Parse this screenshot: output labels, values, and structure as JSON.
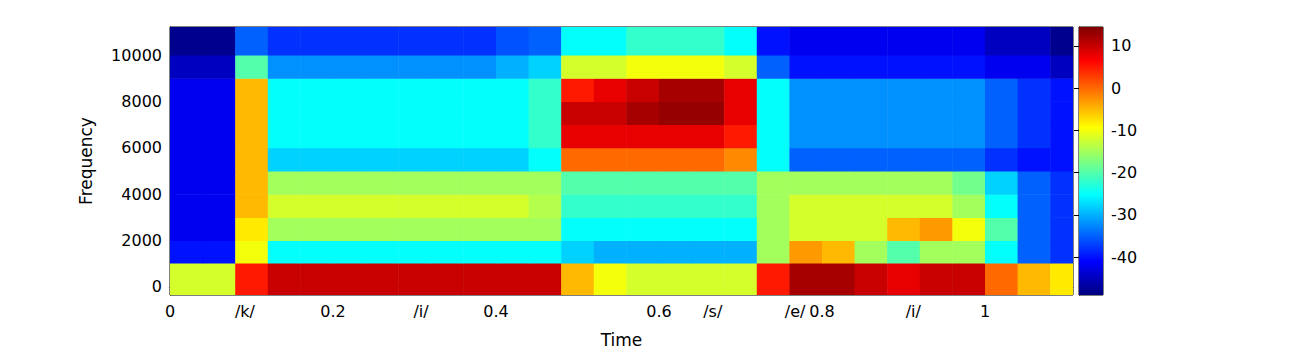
{
  "chart_data": {
    "type": "heatmap",
    "xlabel": "Time",
    "ylabel": "Frequency",
    "xlim": [
      0,
      1.108
    ],
    "xticks": [
      0,
      {
        "value": 0.092,
        "label": "/k/"
      },
      0.2,
      {
        "value": 0.308,
        "label": "/i/"
      },
      0.4,
      0.6,
      {
        "value": 0.666,
        "label": "/s/"
      },
      {
        "value": 0.767,
        "label": "/e/"
      },
      0.8,
      {
        "value": 0.912,
        "label": "/i/"
      },
      1
    ],
    "ylim": [
      -345,
      11207
    ],
    "yticks": [
      0,
      2000,
      4000,
      6000,
      8000,
      10000
    ],
    "time_edges": [
      0,
      0.04,
      0.08,
      0.12,
      0.16,
      0.2,
      0.24,
      0.28,
      0.32,
      0.36,
      0.4,
      0.44,
      0.48,
      0.52,
      0.56,
      0.6,
      0.64,
      0.68,
      0.72,
      0.76,
      0.8,
      0.84,
      0.88,
      0.92,
      0.96,
      1.0,
      1.04,
      1.08,
      1.108
    ],
    "frequency_edges": [
      -345,
      1034,
      2000,
      3000,
      4000,
      5000,
      6000,
      7000,
      8000,
      9000,
      10000,
      11207
    ],
    "cells": [
      [
        -12,
        -12,
        5,
        10,
        10,
        10,
        10,
        10,
        10,
        10,
        10,
        10,
        -5,
        -10,
        -12,
        -12,
        -12,
        -12,
        5,
        12,
        12,
        10,
        8,
        10,
        10,
        0,
        -5,
        -8
      ],
      [
        -40,
        -40,
        -10,
        -25,
        -25,
        -25,
        -25,
        -25,
        -25,
        -25,
        -25,
        -25,
        -28,
        -30,
        -30,
        -30,
        -30,
        -30,
        -15,
        -3,
        -5,
        -15,
        -20,
        -15,
        -15,
        -25,
        -35,
        -38
      ],
      [
        -42,
        -42,
        -8,
        -15,
        -15,
        -15,
        -15,
        -15,
        -15,
        -15,
        -15,
        -15,
        -25,
        -25,
        -25,
        -25,
        -25,
        -25,
        -15,
        -12,
        -12,
        -12,
        -5,
        -3,
        -10,
        -20,
        -35,
        -38
      ],
      [
        -42,
        -42,
        -5,
        -12,
        -12,
        -12,
        -12,
        -12,
        -12,
        -12,
        -12,
        -14,
        -22,
        -22,
        -22,
        -22,
        -22,
        -22,
        -15,
        -12,
        -12,
        -12,
        -12,
        -12,
        -15,
        -25,
        -35,
        -38
      ],
      [
        -42,
        -42,
        -5,
        -15,
        -15,
        -15,
        -15,
        -15,
        -15,
        -15,
        -15,
        -15,
        -20,
        -20,
        -20,
        -20,
        -20,
        -20,
        -15,
        -15,
        -15,
        -15,
        -15,
        -15,
        -18,
        -28,
        -35,
        -38
      ],
      [
        -42,
        -42,
        -5,
        -28,
        -28,
        -28,
        -28,
        -28,
        -28,
        -28,
        -28,
        -25,
        0,
        0,
        0,
        0,
        0,
        -2,
        -25,
        -35,
        -35,
        -35,
        -35,
        -35,
        -35,
        -38,
        -40,
        -40
      ],
      [
        -42,
        -42,
        -5,
        -25,
        -25,
        -25,
        -25,
        -25,
        -25,
        -25,
        -25,
        -22,
        8,
        8,
        8,
        8,
        8,
        5,
        -25,
        -32,
        -32,
        -32,
        -32,
        -32,
        -32,
        -35,
        -38,
        -40
      ],
      [
        -42,
        -42,
        -5,
        -25,
        -25,
        -25,
        -25,
        -25,
        -25,
        -25,
        -25,
        -22,
        10,
        10,
        12,
        13,
        13,
        8,
        -25,
        -32,
        -32,
        -32,
        -32,
        -32,
        -32,
        -35,
        -38,
        -40
      ],
      [
        -42,
        -42,
        -5,
        -25,
        -25,
        -25,
        -25,
        -25,
        -25,
        -25,
        -25,
        -22,
        5,
        8,
        10,
        12,
        12,
        8,
        -25,
        -32,
        -32,
        -32,
        -32,
        -32,
        -32,
        -35,
        -38,
        -40
      ],
      [
        -45,
        -45,
        -20,
        -32,
        -32,
        -32,
        -32,
        -32,
        -32,
        -32,
        -30,
        -28,
        -12,
        -12,
        -10,
        -10,
        -10,
        -12,
        -35,
        -40,
        -40,
        -40,
        -40,
        -40,
        -40,
        -42,
        -42,
        -45
      ],
      [
        -48,
        -48,
        -35,
        -38,
        -38,
        -38,
        -38,
        -38,
        -38,
        -38,
        -36,
        -35,
        -25,
        -25,
        -22,
        -22,
        -22,
        -25,
        -40,
        -42,
        -42,
        -42,
        -42,
        -42,
        -42,
        -45,
        -45,
        -48
      ]
    ],
    "colorbar_range": [
      -49,
      14.5
    ],
    "colorbar_ticks": [
      -40,
      -30,
      -20,
      -10,
      0,
      10
    ]
  }
}
